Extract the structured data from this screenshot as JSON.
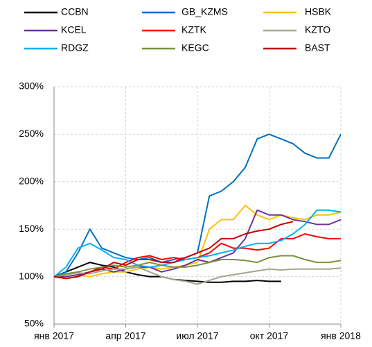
{
  "chart_data": {
    "type": "line",
    "categories": [
      "янв 2017",
      null,
      null,
      null,
      null,
      null,
      "апр 2017",
      null,
      null,
      null,
      null,
      null,
      "июл 2017",
      null,
      null,
      null,
      null,
      null,
      "окт 2017",
      null,
      null,
      null,
      null,
      null,
      "янв 2018"
    ],
    "ylim": [
      50,
      300
    ],
    "yticks": [
      {
        "value": 50,
        "label": "50%"
      },
      {
        "value": 100,
        "label": "100%"
      },
      {
        "value": 150,
        "label": "150%"
      },
      {
        "value": 200,
        "label": "200%"
      },
      {
        "value": 250,
        "label": "250%"
      },
      {
        "value": 300,
        "label": "300%"
      }
    ],
    "grid": true,
    "legend": "top",
    "series": [
      {
        "name": "CCBN",
        "color": "#000000",
        "values": [
          100,
          105,
          110,
          115,
          112,
          110,
          105,
          102,
          100,
          100,
          97,
          96,
          95,
          94,
          94,
          95,
          95,
          96,
          95,
          95,
          null,
          null,
          null,
          null,
          null
        ]
      },
      {
        "name": "GB_KZMS",
        "color": "#0070c0",
        "values": [
          100,
          105,
          125,
          150,
          130,
          125,
          120,
          118,
          120,
          115,
          118,
          120,
          125,
          185,
          190,
          200,
          215,
          245,
          250,
          245,
          240,
          230,
          225,
          225,
          250
        ]
      },
      {
        "name": "HSBK",
        "color": "#ffc000",
        "values": [
          100,
          100,
          102,
          100,
          103,
          105,
          105,
          108,
          110,
          108,
          110,
          112,
          115,
          150,
          160,
          160,
          175,
          165,
          160,
          165,
          162,
          160,
          165,
          165,
          168
        ]
      },
      {
        "name": "KCEL",
        "color": "#7030a0",
        "values": [
          100,
          100,
          102,
          105,
          108,
          105,
          108,
          110,
          110,
          105,
          108,
          112,
          118,
          115,
          120,
          125,
          140,
          170,
          165,
          165,
          160,
          158,
          155,
          155,
          160
        ]
      },
      {
        "name": "KZTK",
        "color": "#ff0000",
        "values": [
          100,
          98,
          100,
          105,
          110,
          108,
          115,
          120,
          122,
          118,
          120,
          118,
          120,
          125,
          135,
          130,
          130,
          128,
          130,
          140,
          140,
          145,
          142,
          140,
          140
        ]
      },
      {
        "name": "KZTO",
        "color": "#a5a58d",
        "values": [
          100,
          102,
          104,
          103,
          106,
          108,
          108,
          110,
          105,
          100,
          97,
          95,
          92,
          96,
          100,
          102,
          104,
          106,
          108,
          107,
          108,
          108,
          108,
          108,
          109
        ]
      },
      {
        "name": "RDGZ",
        "color": "#00b0f0",
        "values": [
          100,
          110,
          130,
          135,
          128,
          120,
          118,
          112,
          110,
          112,
          115,
          118,
          120,
          122,
          125,
          128,
          132,
          135,
          135,
          138,
          145,
          155,
          170,
          170,
          168
        ]
      },
      {
        "name": "KEGC",
        "color": "#77933c",
        "values": [
          100,
          103,
          105,
          108,
          110,
          112,
          110,
          112,
          115,
          112,
          110,
          110,
          112,
          115,
          118,
          118,
          117,
          115,
          120,
          122,
          122,
          118,
          115,
          115,
          117
        ]
      },
      {
        "name": "BAST",
        "color": "#c00000",
        "values": [
          100,
          98,
          100,
          105,
          108,
          115,
          112,
          118,
          118,
          115,
          115,
          120,
          125,
          130,
          140,
          140,
          145,
          148,
          150,
          155,
          158,
          null,
          null,
          null,
          null
        ]
      }
    ]
  }
}
